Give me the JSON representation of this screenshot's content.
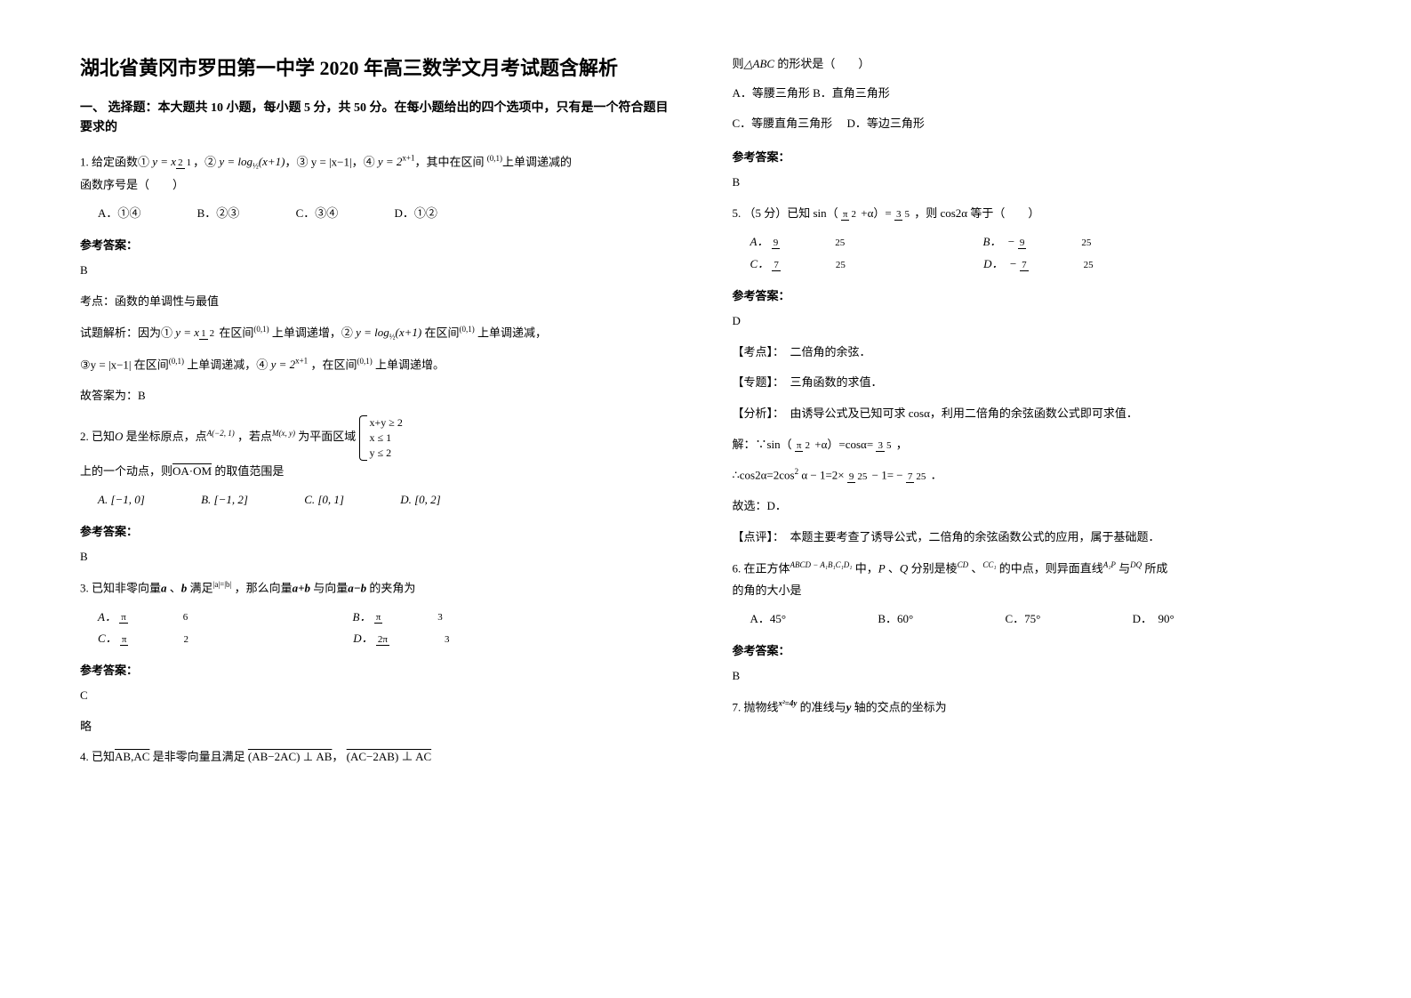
{
  "title": "湖北省黄冈市罗田第一中学 2020 年高三数学文月考试题含解析",
  "section1_head": "一、 选择题：本大题共 10 小题，每小题 5 分，共 50 分。在每小题给出的四个选项中，只有是一个符合题目要求的",
  "q1": {
    "text_a": "1. 给定函数①",
    "text_b": "，②",
    "text_c": "，③",
    "text_d": "，④",
    "text_e": "，其中在区间",
    "text_f": "上单调递减的",
    "line2": "函数序号是（　　）",
    "opts": {
      "a": "A．①④",
      "b": "B．②③",
      "c": "C．③④",
      "d": "D．①②"
    },
    "ans_label": "参考答案：",
    "ans": "B",
    "note1": "考点：函数的单调性与最值",
    "note2_a": "试题解析：因为①",
    "note2_b": "在区间",
    "note2_c": "上单调递增，②",
    "note2_d": "在区间",
    "note2_e": "上单调递减，",
    "note3_a": "③",
    "note3_b": "在区间",
    "note3_c": "上单调递减，④",
    "note3_d": "，在区间",
    "note3_e": "上单调递增。",
    "note4": "故答案为：B"
  },
  "q2": {
    "text_a": "2. 已知",
    "text_b": "是坐标原点，点",
    "text_c": "，若点",
    "text_d": "为平面区域",
    "line2_a": "上的一个动点，则",
    "line2_b": "的取值范围是",
    "opts": {
      "a": "A.",
      "b": "B.",
      "c": "C.",
      "d": "D."
    },
    "ans_label": "参考答案：",
    "ans": "B"
  },
  "q3": {
    "text_a": "3. 已知非零向量",
    "text_b": "、",
    "text_c": "满足",
    "text_d": "，那么向量",
    "text_e": "与向量",
    "text_f": "的夹角为",
    "opts": {
      "a": "A．",
      "b": "B．",
      "c": "C．",
      "d": "D．"
    },
    "ans_label": "参考答案：",
    "ans": "C",
    "note": "略"
  },
  "q4": {
    "text_a": "4. 已知",
    "text_b": "是非零向量且满足",
    "text_c": "，"
  },
  "q4_right": {
    "text_a": "则",
    "text_b": "的形状是（　　）",
    "opt_a": "A．等腰三角形",
    "opt_b": "B．直角三角形",
    "opt_c": "C．等腰直角三角形",
    "opt_d": "D．等边三角形",
    "ans_label": "参考答案：",
    "ans": "B"
  },
  "q5": {
    "text_a": "5. （5 分）已知 sin（",
    "text_b": "+α）=",
    "text_c": "，则 cos2α 等于（　　）",
    "opts": {
      "a": "A．",
      "b": "B．　−",
      "c": "C．",
      "d": "D．　−"
    },
    "ans_label": "参考答案：",
    "ans": "D",
    "k1": "【考点】：　二倍角的余弦．",
    "k2": "【专题】：　三角函数的求值．",
    "k3": "【分析】：　由诱导公式及已知可求 cosα，利用二倍角的余弦函数公式即可求值．",
    "s1_a": "解：∵sin（",
    "s1_b": "+α）=cosα=",
    "s1_c": "，",
    "s2_a": "∴cos2α=2cos",
    "s2_b": "α − 1=2×",
    "s2_c": " − 1= −",
    "s2_d": "．",
    "s3": "故选：D．",
    "k4": "【点评】：　本题主要考查了诱导公式，二倍角的余弦函数公式的应用，属于基础题．"
  },
  "q6": {
    "text_a": "6. 在正方体",
    "text_b": "中，",
    "text_c": "、",
    "text_d": "分别是棱",
    "text_e": "、",
    "text_f": "的中点，则异面直线",
    "text_g": "与",
    "text_h": "所成",
    "line2": "的角的大小是",
    "opts": {
      "a": "A．45°",
      "b": "B．60°",
      "c": "C．75°",
      "d": "D．　90°"
    },
    "ans_label": "参考答案：",
    "ans": "B"
  },
  "q7": {
    "text_a": "7. 抛物线",
    "text_b": "的准线与",
    "text_c": "轴的交点的坐标为"
  },
  "sym": {
    "O": "O",
    "A": "A(−2, 1)",
    "M": "M(x, y)",
    "OA_OM": "OA·OM",
    "a": "a",
    "b": "b",
    "ab_eq": "|a|=|b|",
    "apb": "a+b",
    "amb": "a−b",
    "AB_AC": "AB,AC",
    "e1": "(AB−2AC) ⊥ AB",
    "e2": "(AC−2AB) ⊥ AC",
    "ABC": "△ABC",
    "cube": "ABCD − A₁B₁C₁D₁",
    "P": "P",
    "Q": "Q",
    "CD": "CD",
    "CC1": "CC₁",
    "A1P": "A₁P",
    "DQ": "DQ",
    "parab": "x²=4y",
    "yax": "y",
    "f1": "y = x",
    "f2": "y = log",
    "f2b": "(x+1)",
    "f3": "y = |x−1|",
    "f4": "y = 2",
    "int01": "(0,1)",
    "r1": "x+y ≥ 2",
    "r2": "x ≤ 1",
    "r3": "y ≤ 2",
    "i1": "[−1, 0]",
    "i2": "[−1, 2]",
    "i3": "[0, 1]",
    "i4": "[0, 2]",
    "pi": "π",
    "half": "½",
    "x1": "x+1",
    "two": "2",
    "three": "3",
    "five": "5",
    "six": "6",
    "seven": "7",
    "nine": "9",
    "t25": "25",
    "twopi": "2π"
  }
}
